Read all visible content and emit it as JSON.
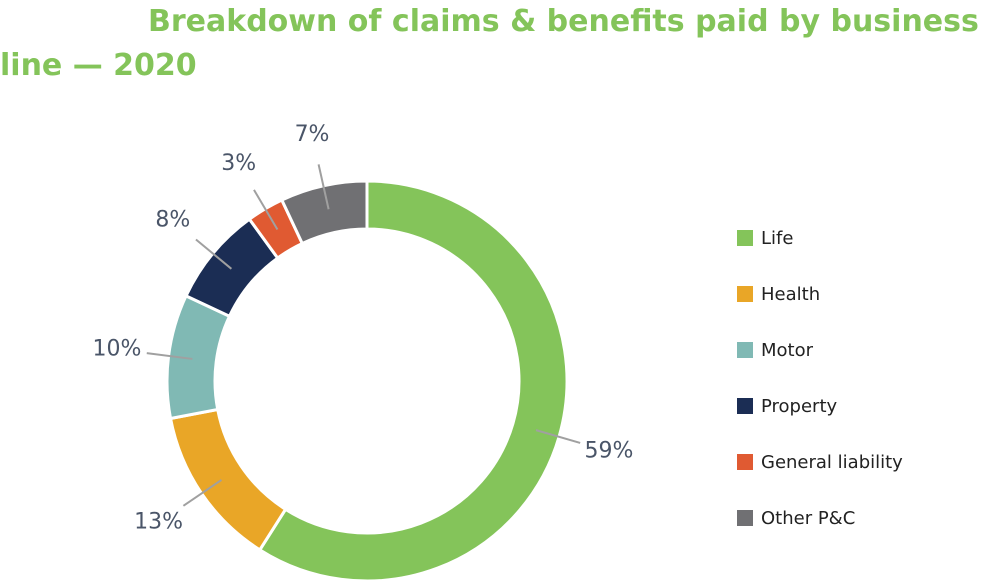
{
  "chart_data": {
    "type": "donut",
    "title": "Breakdown of claims & benefits paid by business line — 2020",
    "categories": [
      "Life",
      "Health",
      "Motor",
      "Property",
      "General liability",
      "Other P&C"
    ],
    "values": [
      59,
      13,
      10,
      8,
      3,
      7
    ],
    "value_labels": [
      "59%",
      "13%",
      "10%",
      "8%",
      "3%",
      "7%"
    ],
    "colors": [
      "#84c45a",
      "#e9a627",
      "#80b9b4",
      "#1b2d54",
      "#e05a32",
      "#707073"
    ],
    "legend": "right"
  }
}
